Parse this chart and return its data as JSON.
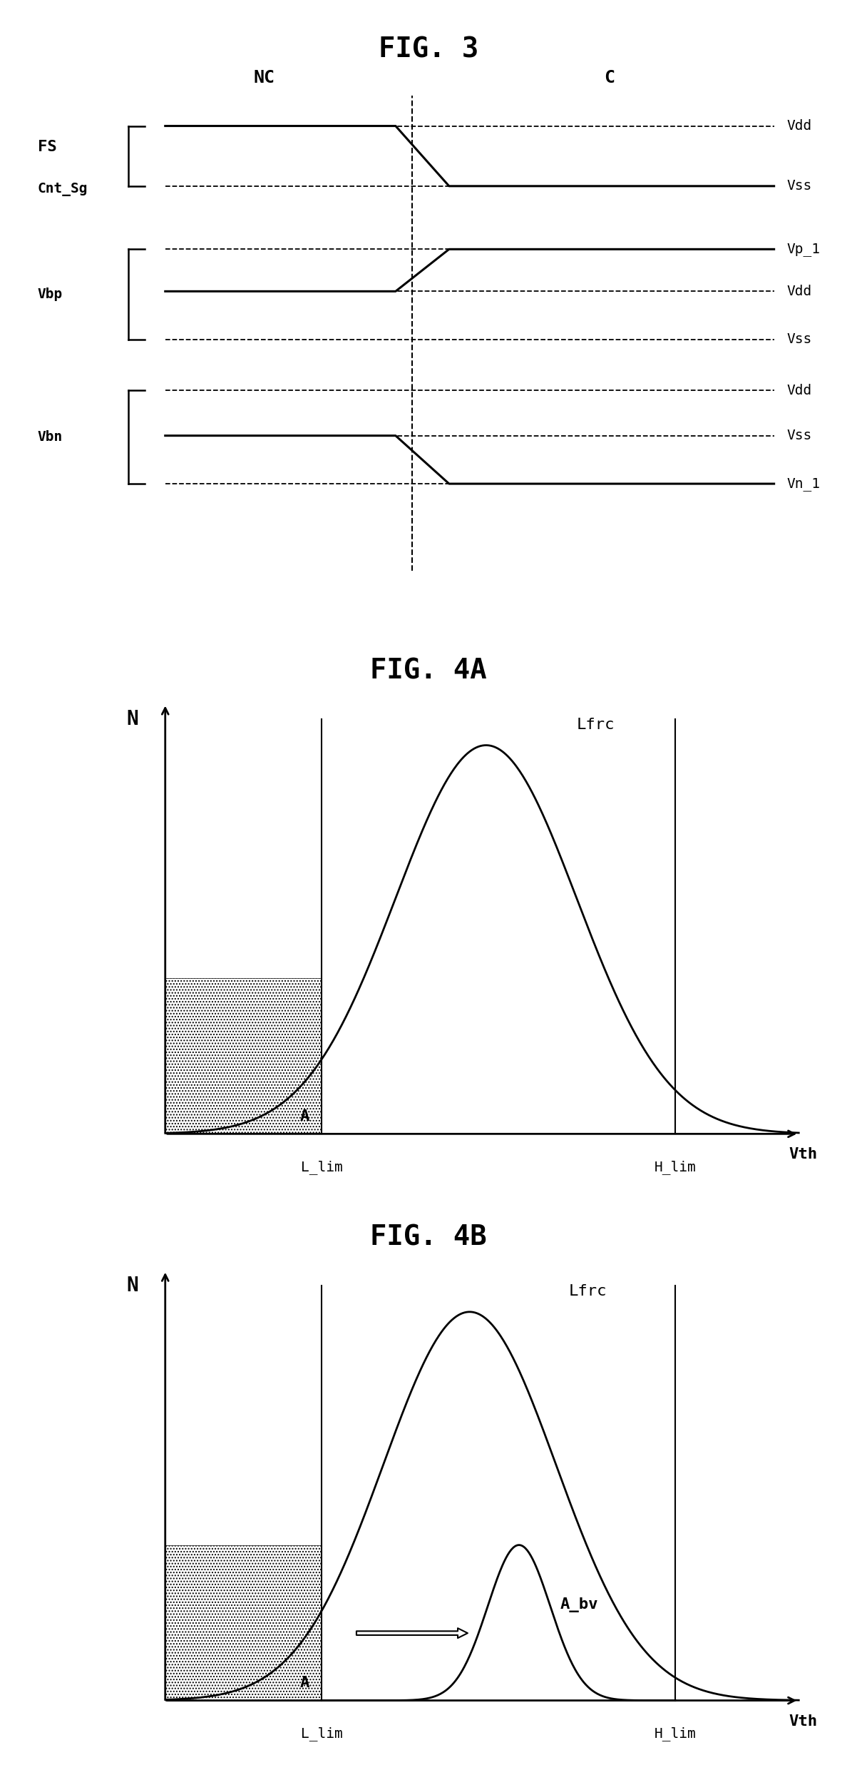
{
  "fig3_title": "FIG. 3",
  "fig4a_title": "FIG. 4A",
  "fig4b_title": "FIG. 4B",
  "nc_label": "NC",
  "c_label": "C",
  "fs_label": "FS",
  "cnt_sg_label": "Cnt_Sg",
  "vbp_label": "Vbp",
  "vbn_label": "Vbn",
  "vdd_label": "Vdd",
  "vss_label": "Vss",
  "vp1_label": "Vp_1",
  "vn1_label": "Vn_1",
  "n_label": "N",
  "vth_label": "Vth",
  "lfrc_label": "Lfrc",
  "llim_label": "L_lim",
  "hlim_label": "H_lim",
  "a_label": "A",
  "abv_label": "A_bv",
  "background": "#ffffff",
  "line_color": "#000000"
}
